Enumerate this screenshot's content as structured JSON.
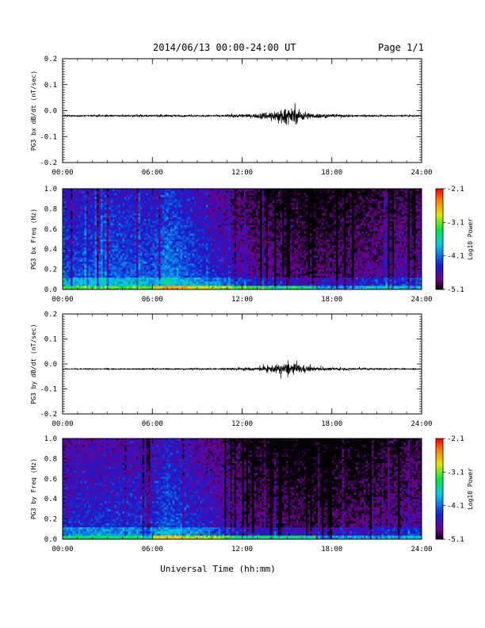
{
  "header": {
    "title": "2014/06/13  00:00-24:00 UT",
    "page": "Page 1/1"
  },
  "x_axis_label": "Universal Time (hh:mm)",
  "chart_data": [
    {
      "type": "line",
      "ylabel": "PG3 bx dB/dt (nT/sec)",
      "xlim": [
        "00:00",
        "24:00"
      ],
      "ylim": [
        -0.2,
        0.2
      ],
      "x_ticks": [
        "00:00",
        "06:00",
        "12:00",
        "18:00",
        "24:00"
      ],
      "y_ticks": [
        "0.2",
        "0.1",
        "0.0",
        "-0.1",
        "-0.2"
      ],
      "baseline": -0.02,
      "envelope": {
        "hours": [
          0,
          2,
          4,
          6,
          7,
          8,
          10,
          11,
          11.5,
          12,
          12.5,
          13,
          13.5,
          14,
          14.5,
          15,
          15.5,
          16,
          16.5,
          17,
          18,
          19,
          20,
          22,
          24
        ],
        "max_amplitude": [
          0.005,
          0.006,
          0.006,
          0.007,
          0.008,
          0.006,
          0.006,
          0.008,
          0.012,
          0.015,
          0.012,
          0.02,
          0.03,
          0.04,
          0.05,
          0.06,
          0.06,
          0.045,
          0.025,
          0.02,
          0.012,
          0.01,
          0.008,
          0.006,
          0.005
        ]
      },
      "line_color": "#000000"
    },
    {
      "type": "heatmap",
      "ylabel": "PG3 bx Freq (Hz)",
      "xlim": [
        "00:00",
        "24:00"
      ],
      "ylim": [
        0.0,
        1.0
      ],
      "x_ticks": [
        "00:00",
        "06:00",
        "12:00",
        "18:00",
        "24:00"
      ],
      "y_ticks": [
        "1.0",
        "0.8",
        "0.6",
        "0.4",
        "0.2",
        "0.0"
      ],
      "colorbar": {
        "label": "Log10 Power",
        "ticks": [
          "-2.1",
          "-3.1",
          "-4.1",
          "-5.1"
        ],
        "range": [
          -5.1,
          -2.1
        ]
      },
      "background_power": {
        "hours": [
          0,
          3,
          6,
          7,
          9,
          10,
          11,
          12,
          13,
          15,
          17,
          19,
          21,
          24
        ],
        "log10_power": [
          -4.3,
          -4.2,
          -4.25,
          -4.05,
          -4.3,
          -4.45,
          -4.55,
          -4.7,
          -4.8,
          -4.85,
          -4.95,
          -4.85,
          -4.8,
          -4.65
        ]
      }
    },
    {
      "type": "line",
      "ylabel": "PG3 by dB/dt (nT/sec)",
      "xlim": [
        "00:00",
        "24:00"
      ],
      "ylim": [
        -0.2,
        0.2
      ],
      "x_ticks": [
        "00:00",
        "06:00",
        "12:00",
        "18:00",
        "24:00"
      ],
      "y_ticks": [
        "0.2",
        "0.1",
        "0.0",
        "-0.1",
        "-0.2"
      ],
      "baseline": -0.02,
      "envelope": {
        "hours": [
          0,
          2,
          4,
          6,
          7,
          8,
          10,
          11,
          11.5,
          12,
          12.5,
          13,
          13.5,
          14,
          14.5,
          15,
          15.5,
          16,
          16.5,
          17,
          18,
          19,
          20,
          22,
          24
        ],
        "max_amplitude": [
          0.003,
          0.004,
          0.004,
          0.005,
          0.006,
          0.005,
          0.006,
          0.008,
          0.01,
          0.012,
          0.012,
          0.015,
          0.022,
          0.03,
          0.04,
          0.05,
          0.045,
          0.035,
          0.02,
          0.015,
          0.012,
          0.01,
          0.008,
          0.005,
          0.004
        ]
      },
      "line_color": "#000000"
    },
    {
      "type": "heatmap",
      "ylabel": "PG3 by Freq (Hz)",
      "xlim": [
        "00:00",
        "24:00"
      ],
      "ylim": [
        0.0,
        1.0
      ],
      "x_ticks": [
        "00:00",
        "06:00",
        "12:00",
        "18:00",
        "24:00"
      ],
      "y_ticks": [
        "1.0",
        "0.8",
        "0.6",
        "0.4",
        "0.2",
        "0.0"
      ],
      "colorbar": {
        "label": "Log10 Power",
        "ticks": [
          "-2.1",
          "-3.1",
          "-4.1",
          "-5.1"
        ],
        "range": [
          -5.1,
          -2.1
        ]
      },
      "background_power": {
        "hours": [
          0,
          3,
          6,
          7,
          9,
          10,
          11,
          12,
          13,
          15,
          17,
          19,
          21,
          24
        ],
        "log10_power": [
          -4.45,
          -4.4,
          -4.4,
          -4.2,
          -4.45,
          -4.55,
          -4.65,
          -4.8,
          -4.9,
          -4.95,
          -5.0,
          -4.95,
          -4.9,
          -4.75
        ]
      }
    }
  ]
}
